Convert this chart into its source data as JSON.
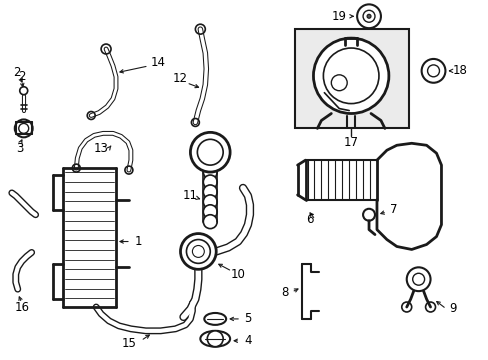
{
  "bg_color": "#ffffff",
  "line_color": "#1a1a1a",
  "label_color": "#000000",
  "font_size": 8.5,
  "figsize": [
    4.89,
    3.6
  ],
  "dpi": 100
}
